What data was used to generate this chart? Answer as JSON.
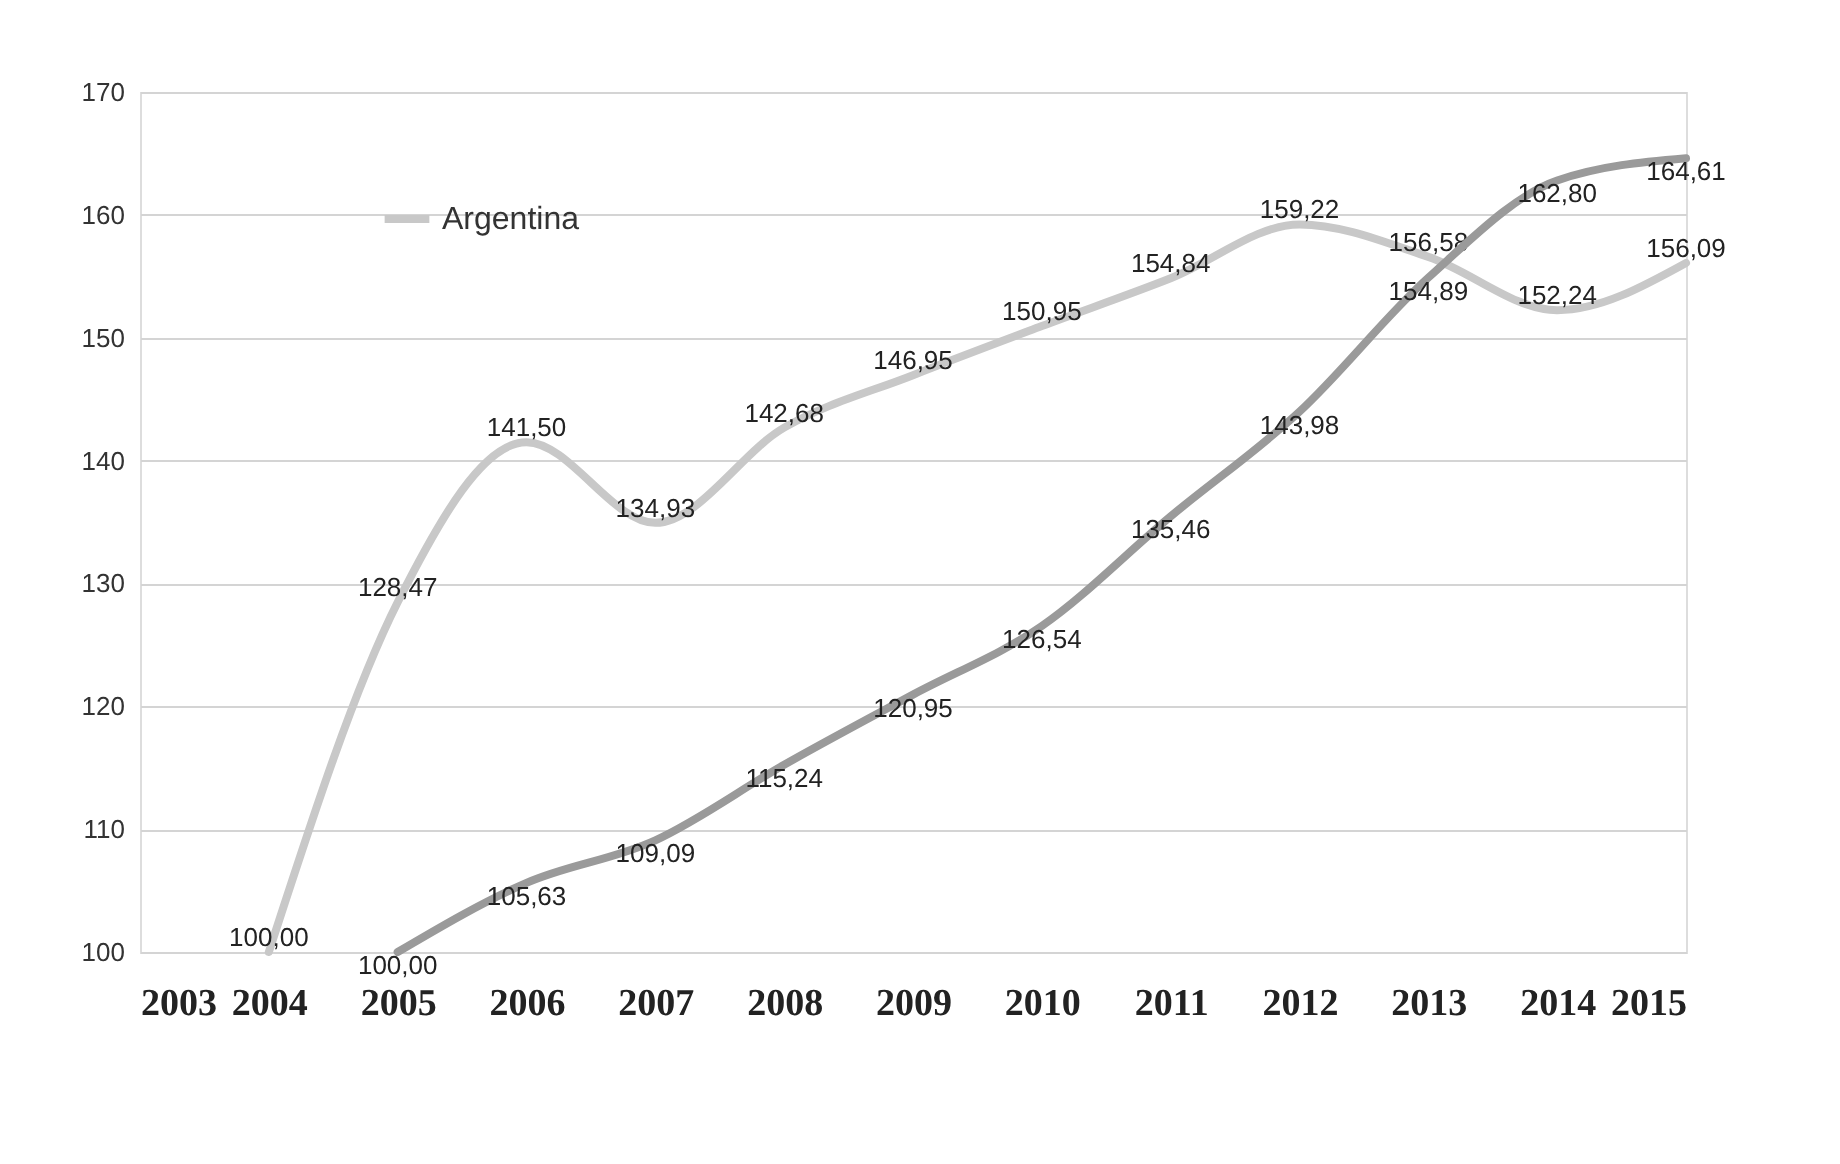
{
  "chart_data": {
    "type": "line",
    "series": [
      {
        "name": "Argentina",
        "color": "#c8c8c8",
        "x": [
          2004,
          2005,
          2006,
          2007,
          2008,
          2009,
          2010,
          2011,
          2012,
          2013,
          2014,
          2015
        ],
        "values": [
          100.0,
          128.47,
          141.5,
          134.93,
          142.68,
          146.95,
          150.95,
          154.84,
          159.22,
          156.58,
          152.24,
          156.09
        ],
        "value_labels": [
          "100,00",
          "128,47",
          "141,50",
          "134,93",
          "142,68",
          "146,95",
          "150,95",
          "154,84",
          "159,22",
          "156,58",
          "152,24",
          "156,09"
        ]
      },
      {
        "color": "#9a9a9a",
        "x": [
          2005,
          2006,
          2007,
          2008,
          2009,
          2010,
          2011,
          2012,
          2013,
          2014,
          2015
        ],
        "values": [
          100.0,
          105.63,
          109.09,
          115.24,
          120.95,
          126.54,
          135.46,
          143.98,
          154.89,
          162.8,
          164.61
        ],
        "value_labels": [
          "100,00",
          "105,63",
          "109,09",
          "115,24",
          "120,95",
          "126,54",
          "135,46",
          "143,98",
          "154,89",
          "162,80",
          "164,61"
        ]
      }
    ],
    "xlim": [
      2003,
      2015
    ],
    "xticks": [
      2003,
      2004,
      2005,
      2006,
      2007,
      2008,
      2009,
      2010,
      2011,
      2012,
      2013,
      2014,
      2015
    ],
    "ylim": [
      100,
      170
    ],
    "yticks": [
      100,
      110,
      120,
      130,
      140,
      150,
      160,
      170
    ],
    "grid": "y",
    "legend": "top left",
    "marker": "none",
    "line_style": "solid"
  }
}
